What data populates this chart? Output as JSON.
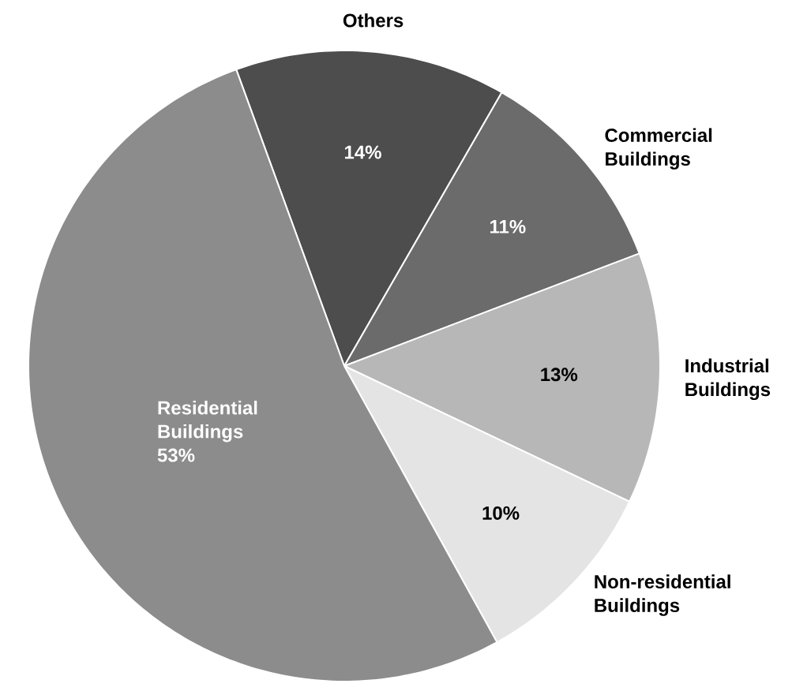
{
  "chart_data": {
    "type": "pie",
    "categories": [
      "Others",
      "Commercial Buildings",
      "Industrial Buildings",
      "Non-residential Buildings",
      "Residential Buildings"
    ],
    "values": [
      14,
      11,
      13,
      10,
      53
    ],
    "colors": [
      "#4d4d4d",
      "#6b6b6b",
      "#b7b7b7",
      "#e4e4e4",
      "#8c8c8c"
    ],
    "value_labels": [
      "14%",
      "11%",
      "13%",
      "10%",
      "53%"
    ]
  }
}
